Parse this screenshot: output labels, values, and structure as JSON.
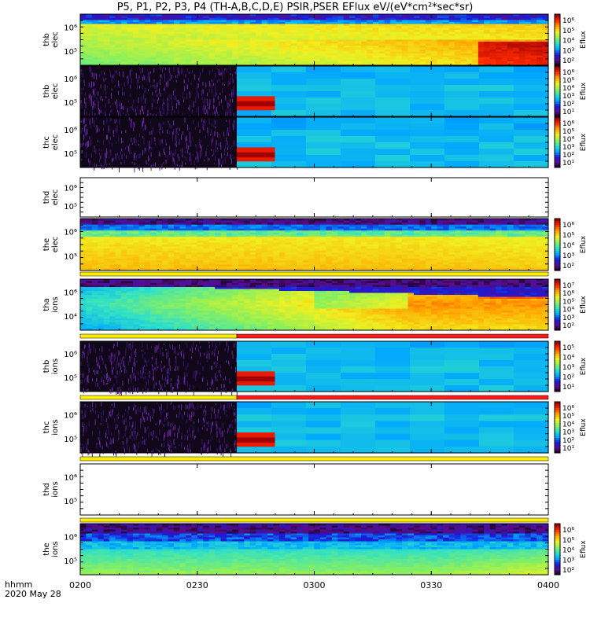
{
  "title": "P5, P1, P2, P3, P4 (TH-A,B,C,D,E) PSIR,PSER EFlux eV/(eV*cm²*sec*sr)",
  "date_label": "2020 May 28",
  "time_label": "hhmm",
  "chart_data": {
    "type": "heatmap",
    "x_ticks": [
      "0200",
      "0230",
      "0300",
      "0330",
      "0400"
    ],
    "x_range": [
      "0200",
      "0400"
    ],
    "panels": [
      {
        "ylabel": [
          "thb",
          "elec"
        ],
        "yticks": [
          "10⁶",
          "10⁵"
        ],
        "colorbar_label": "Eflux",
        "colorbar_ticks": [
          "10⁶",
          "10⁵",
          "10⁴",
          "10³",
          "10²"
        ],
        "pattern": "full",
        "data_start": "0200"
      },
      {
        "ylabel": [
          "thb",
          "elec"
        ],
        "yticks": [
          "10⁶",
          "10⁵"
        ],
        "colorbar_label": "Eflux",
        "colorbar_ticks": [
          "10⁶",
          "10⁵",
          "10⁴",
          "10³",
          "10²",
          "10¹"
        ],
        "pattern": "sparse",
        "data_start": "0240"
      },
      {
        "ylabel": [
          "thc",
          "elec"
        ],
        "yticks": [
          "10⁶",
          "10⁵"
        ],
        "colorbar_label": "Eflux",
        "colorbar_ticks": [
          "10⁶",
          "10⁵",
          "10⁴",
          "10³",
          "10²",
          "10¹"
        ],
        "pattern": "sparse",
        "data_start": "0240"
      },
      {
        "ylabel": [
          "thd",
          "elec"
        ],
        "yticks": [
          "10⁶",
          "10⁵"
        ],
        "colorbar_label": "",
        "colorbar_ticks": [],
        "pattern": "empty",
        "data_start": ""
      },
      {
        "ylabel": [
          "the",
          "elec"
        ],
        "yticks": [
          "10⁶",
          "10⁵"
        ],
        "colorbar_label": "Eflux",
        "colorbar_ticks": [
          "10⁶",
          "10⁵",
          "10⁴",
          "10³",
          "10²"
        ],
        "pattern": "full2",
        "data_start": "0200"
      },
      {
        "ylabel": [
          "tha",
          "ions"
        ],
        "yticks": [
          "10⁶",
          "10⁴"
        ],
        "colorbar_label": "Eflux",
        "colorbar_ticks": [
          "10⁷",
          "10⁶",
          "10⁵",
          "10⁴",
          "10³",
          "10²"
        ],
        "pattern": "ions",
        "data_start": "0200"
      },
      {
        "ylabel": [
          "thb",
          "ions"
        ],
        "yticks": [
          "10⁶",
          "10⁵"
        ],
        "colorbar_label": "Eflux",
        "colorbar_ticks": [
          "10⁵",
          "10⁴",
          "10³",
          "10²",
          "10¹"
        ],
        "pattern": "sparse",
        "data_start": "0240"
      },
      {
        "ylabel": [
          "thc",
          "ions"
        ],
        "yticks": [
          "10⁶",
          "10⁵"
        ],
        "colorbar_label": "Eflux",
        "colorbar_ticks": [
          "10⁶",
          "10⁵",
          "10⁴",
          "10³",
          "10²",
          "10¹"
        ],
        "pattern": "sparse",
        "data_start": "0240"
      },
      {
        "ylabel": [
          "thd",
          "ions"
        ],
        "yticks": [
          "10⁶",
          "10⁵"
        ],
        "colorbar_label": "",
        "colorbar_ticks": [],
        "pattern": "empty",
        "data_start": ""
      },
      {
        "ylabel": [
          "the",
          "ions"
        ],
        "yticks": [
          "10⁶",
          "10⁵"
        ],
        "colorbar_label": "Eflux",
        "colorbar_ticks": [
          "10⁶",
          "10⁵",
          "10⁴",
          "10³",
          "10²"
        ],
        "pattern": "full3",
        "data_start": "0200"
      }
    ],
    "colormap": [
      "#000000",
      "#5a0d8a",
      "#1a1ad8",
      "#00a6ff",
      "#2fe0c8",
      "#8ef05a",
      "#f0f020",
      "#ffa500",
      "#ff2a00",
      "#9a0000"
    ]
  },
  "colors": {
    "mode_bar_yellow": "#ffee00",
    "mode_bar_red": "#ff1a1a",
    "axis": "#000000"
  }
}
